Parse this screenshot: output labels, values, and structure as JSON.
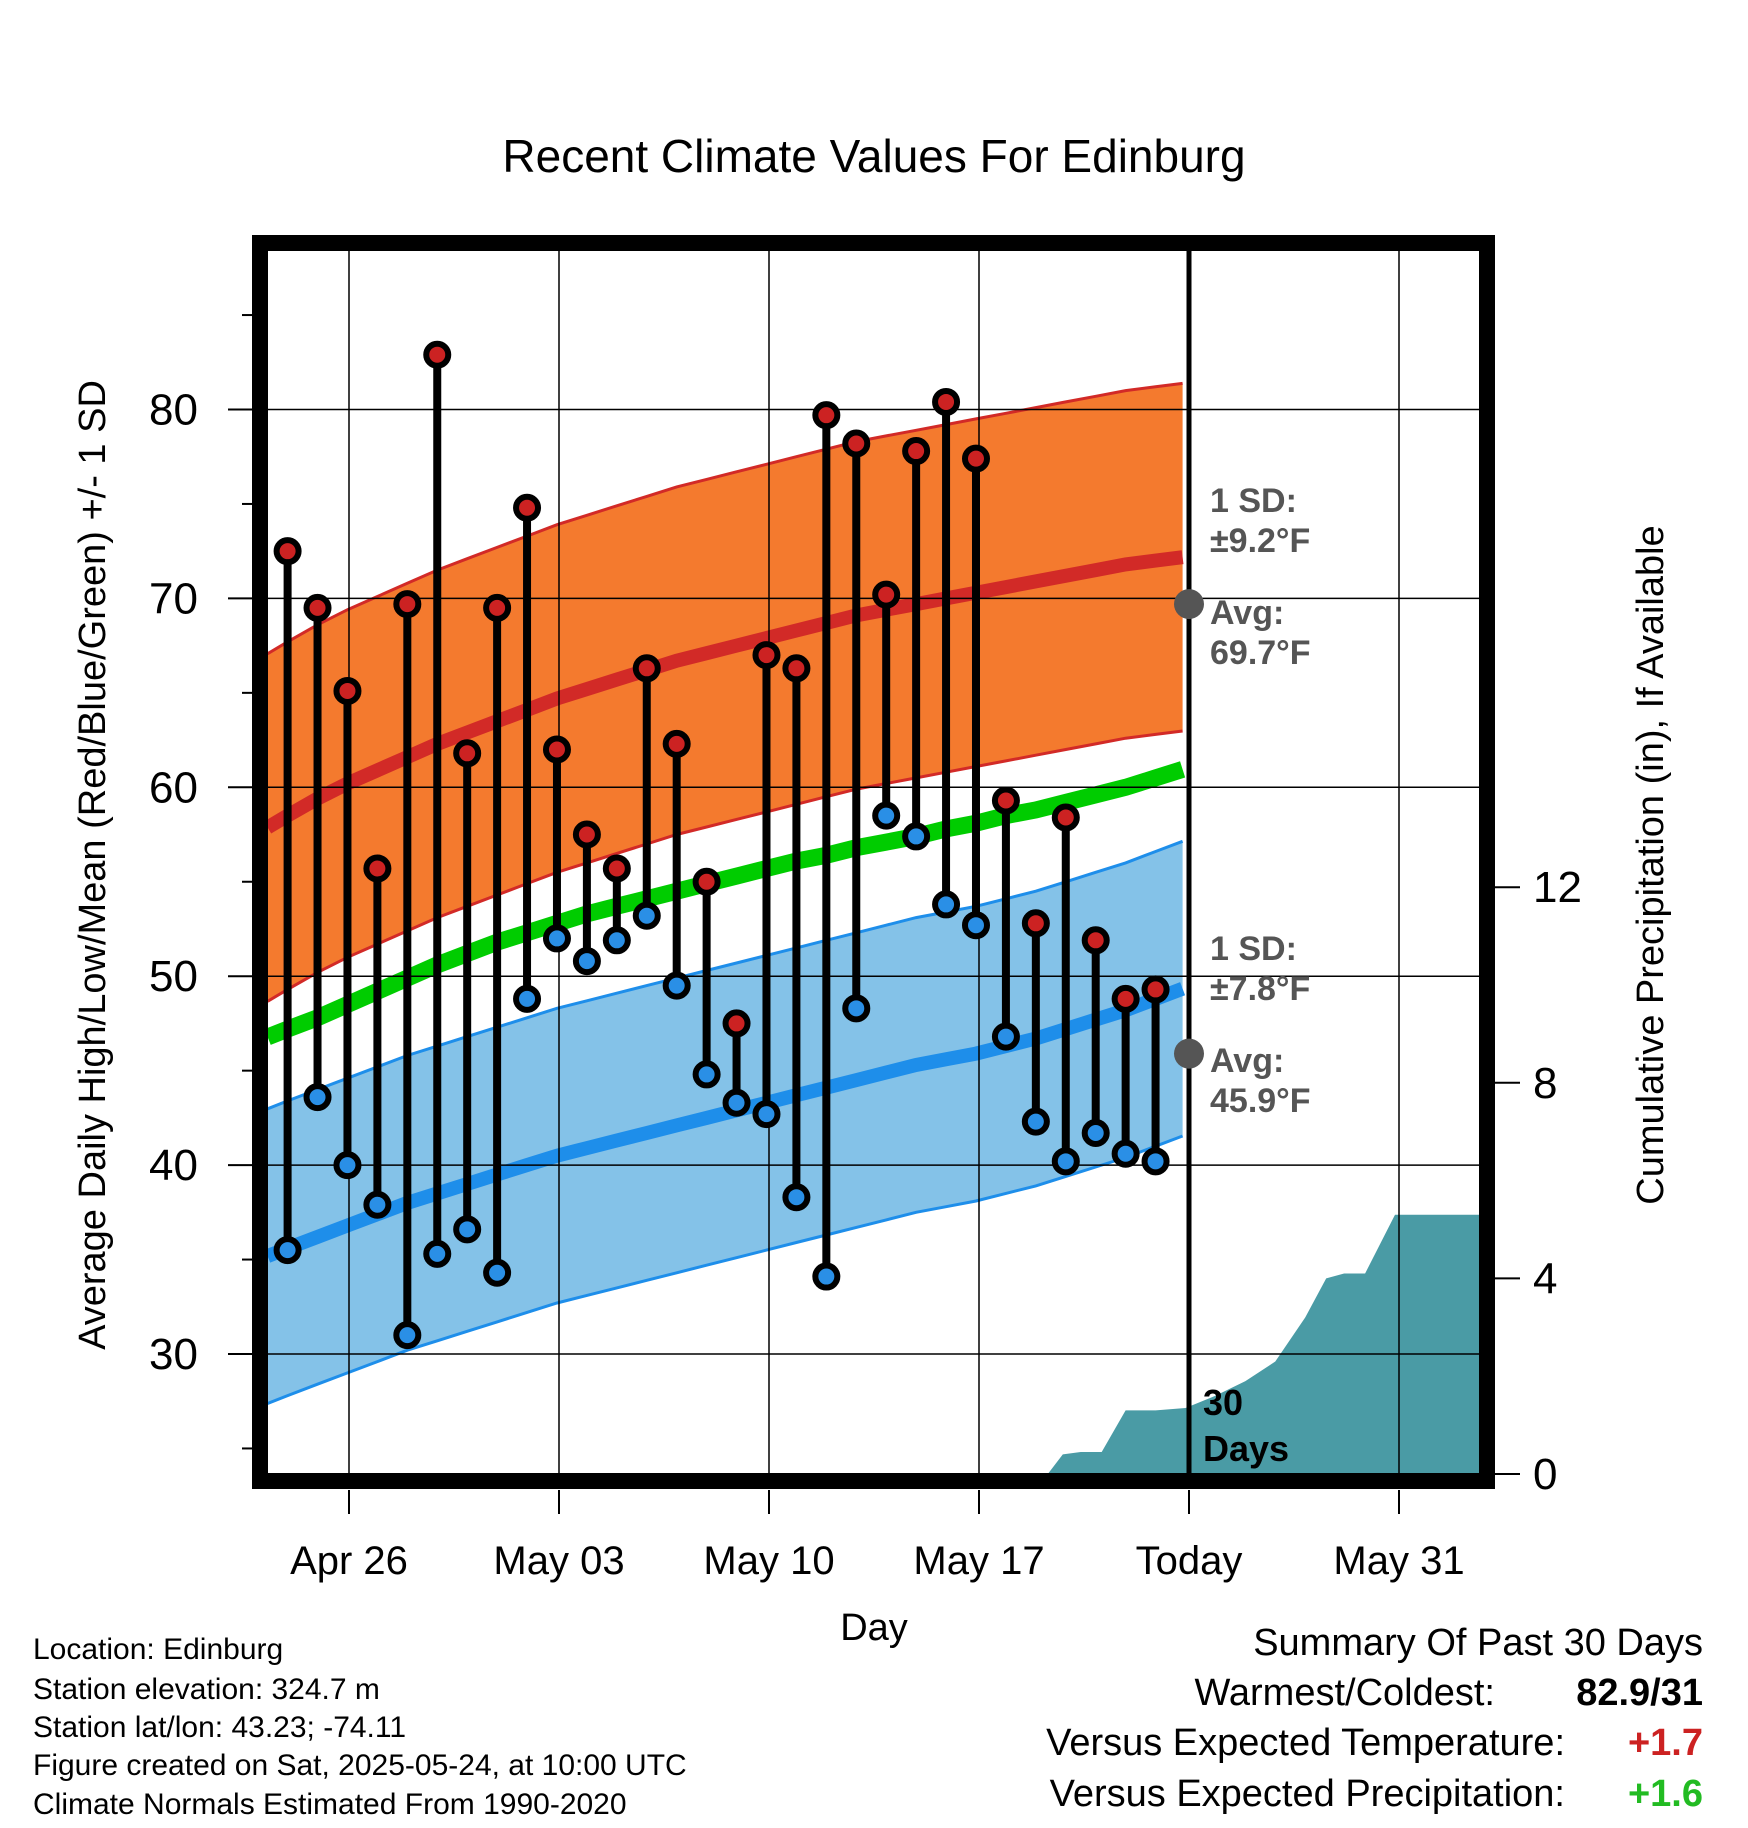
{
  "chart_data": {
    "type": "line",
    "title": "Recent Climate Values For Edinburg",
    "xlabel": "Day",
    "ylabel": "Average Daily High/Low/Mean (Red/Blue/Green) +/- 1 SD",
    "y2label": "Cumulative Precipitation (in), If Available",
    "ylim": [
      23.5,
      88
    ],
    "y2lim": [
      0,
      24.5
    ],
    "x_tick_labels": [
      "Apr 26",
      "May 03",
      "May 10",
      "May 17",
      "Today",
      "May 31"
    ],
    "y_ticks": [
      30,
      40,
      50,
      60,
      70,
      80
    ],
    "y2_ticks": [
      0,
      4,
      8,
      12
    ],
    "grid": true,
    "today_label": "30\nDays",
    "normals": {
      "high_avg": [
        58.5,
        59.4,
        60.2,
        60.9,
        61.6,
        62.3,
        62.9,
        63.5,
        64.1,
        64.7,
        65.2,
        65.7,
        66.2,
        66.7,
        67.1,
        67.5,
        67.9,
        68.3,
        68.7,
        69.1,
        69.4,
        69.7,
        70.0,
        70.3,
        70.6,
        70.9,
        71.2,
        71.5,
        71.8,
        72.0
      ],
      "high_sd": 9.2,
      "low_avg": [
        35.6,
        36.2,
        36.8,
        37.4,
        38.0,
        38.5,
        39.0,
        39.5,
        40.0,
        40.5,
        40.9,
        41.3,
        41.7,
        42.1,
        42.5,
        42.9,
        43.3,
        43.7,
        44.1,
        44.5,
        44.9,
        45.3,
        45.6,
        45.9,
        46.3,
        46.7,
        47.2,
        47.7,
        48.2,
        48.8
      ],
      "low_sd": 7.8,
      "mean_avg": [
        47.2,
        47.8,
        48.5,
        49.2,
        49.9,
        50.6,
        51.2,
        51.8,
        52.3,
        52.8,
        53.3,
        53.7,
        54.1,
        54.5,
        54.9,
        55.3,
        55.7,
        56.1,
        56.4,
        56.8,
        57.1,
        57.4,
        57.8,
        58.1,
        58.5,
        58.8,
        59.2,
        59.6,
        60.0,
        60.5
      ]
    },
    "series": [
      {
        "name": "Red",
        "values": [
          72.5,
          69.5,
          65.1,
          55.7,
          69.7,
          82.9,
          61.8,
          69.5,
          74.8,
          62.0,
          57.5,
          55.7,
          66.3,
          62.3,
          55.0,
          47.5,
          67.0,
          66.3,
          79.7,
          78.2,
          70.2,
          77.8,
          80.4,
          77.4,
          59.3,
          52.8,
          58.4,
          51.9,
          48.8,
          49.3
        ]
      },
      {
        "name": "Blue",
        "values": [
          35.5,
          43.6,
          40.0,
          37.9,
          31.0,
          35.3,
          36.6,
          34.3,
          48.8,
          52.0,
          50.8,
          51.9,
          53.2,
          49.5,
          44.8,
          43.3,
          42.7,
          38.3,
          34.1,
          48.3,
          58.5,
          57.4,
          53.8,
          52.7,
          46.8,
          42.3,
          40.2,
          41.7,
          40.6,
          40.2
        ]
      }
    ],
    "precip_cumulative": [
      [
        26.0,
        0.0
      ],
      [
        26.4,
        0.0
      ],
      [
        26.9,
        0.4
      ],
      [
        27.5,
        0.45
      ],
      [
        28.2,
        0.45
      ],
      [
        29.0,
        1.3
      ],
      [
        30.0,
        1.3
      ],
      [
        31.0,
        1.35
      ],
      [
        32.0,
        1.6
      ],
      [
        33.0,
        1.9
      ],
      [
        34.0,
        2.3
      ],
      [
        35.0,
        3.2
      ],
      [
        35.7,
        4.0
      ],
      [
        36.3,
        4.1
      ],
      [
        37.0,
        4.1
      ],
      [
        38.0,
        5.3
      ],
      [
        39.0,
        5.3
      ],
      [
        42.0,
        5.3
      ],
      [
        44.0,
        5.3
      ],
      [
        46.0,
        5.3
      ],
      [
        47.0,
        5.3
      ],
      [
        48.0,
        5.9
      ],
      [
        49.0,
        5.9
      ],
      [
        51.0,
        5.9
      ],
      [
        52.0,
        5.95
      ],
      [
        53.0,
        6.0
      ],
      [
        54.0,
        6.1
      ],
      [
        60.0,
        6.1
      ]
    ],
    "annotations": {
      "high_sd_label": "1 SD:",
      "high_sd_value": "±9.2°F",
      "high_avg_label": "Avg:",
      "high_avg_value": "69.7°F",
      "low_sd_label": "1 SD:",
      "low_sd_value": "±7.8°F",
      "low_avg_label": "Avg:",
      "low_avg_value": "45.9°F"
    },
    "colors": {
      "high_band": "#f47a2e",
      "high_line": "#d22a27",
      "low_band": "#84c2e8",
      "low_line": "#1e8eea",
      "mean_line": "#00cc00",
      "precip_fill": "#4a9ba5",
      "red_point": "#cc2222",
      "blue_point": "#2a8fe6",
      "annotation_text": "#555555"
    }
  },
  "info": {
    "location": "Location: Edinburg",
    "elevation": "Station elevation: 324.7 m",
    "latlon": "Station lat/lon: 43.23; -74.11",
    "created": "Figure created on Sat, 2025-05-24, at 10:00 UTC",
    "normals": "Climate Normals Estimated From 1990-2020"
  },
  "summary": {
    "title": "Summary Of Past 30 Days",
    "warmest_label": "Warmest/Coldest:",
    "warmest_value": "82.9/31",
    "temp_label": "Versus Expected Temperature:",
    "temp_value": "+1.7",
    "precip_label": "Versus Expected Precipitation:",
    "precip_value": "+1.6",
    "temp_color": "#cc2222",
    "precip_color": "#22bb22"
  }
}
